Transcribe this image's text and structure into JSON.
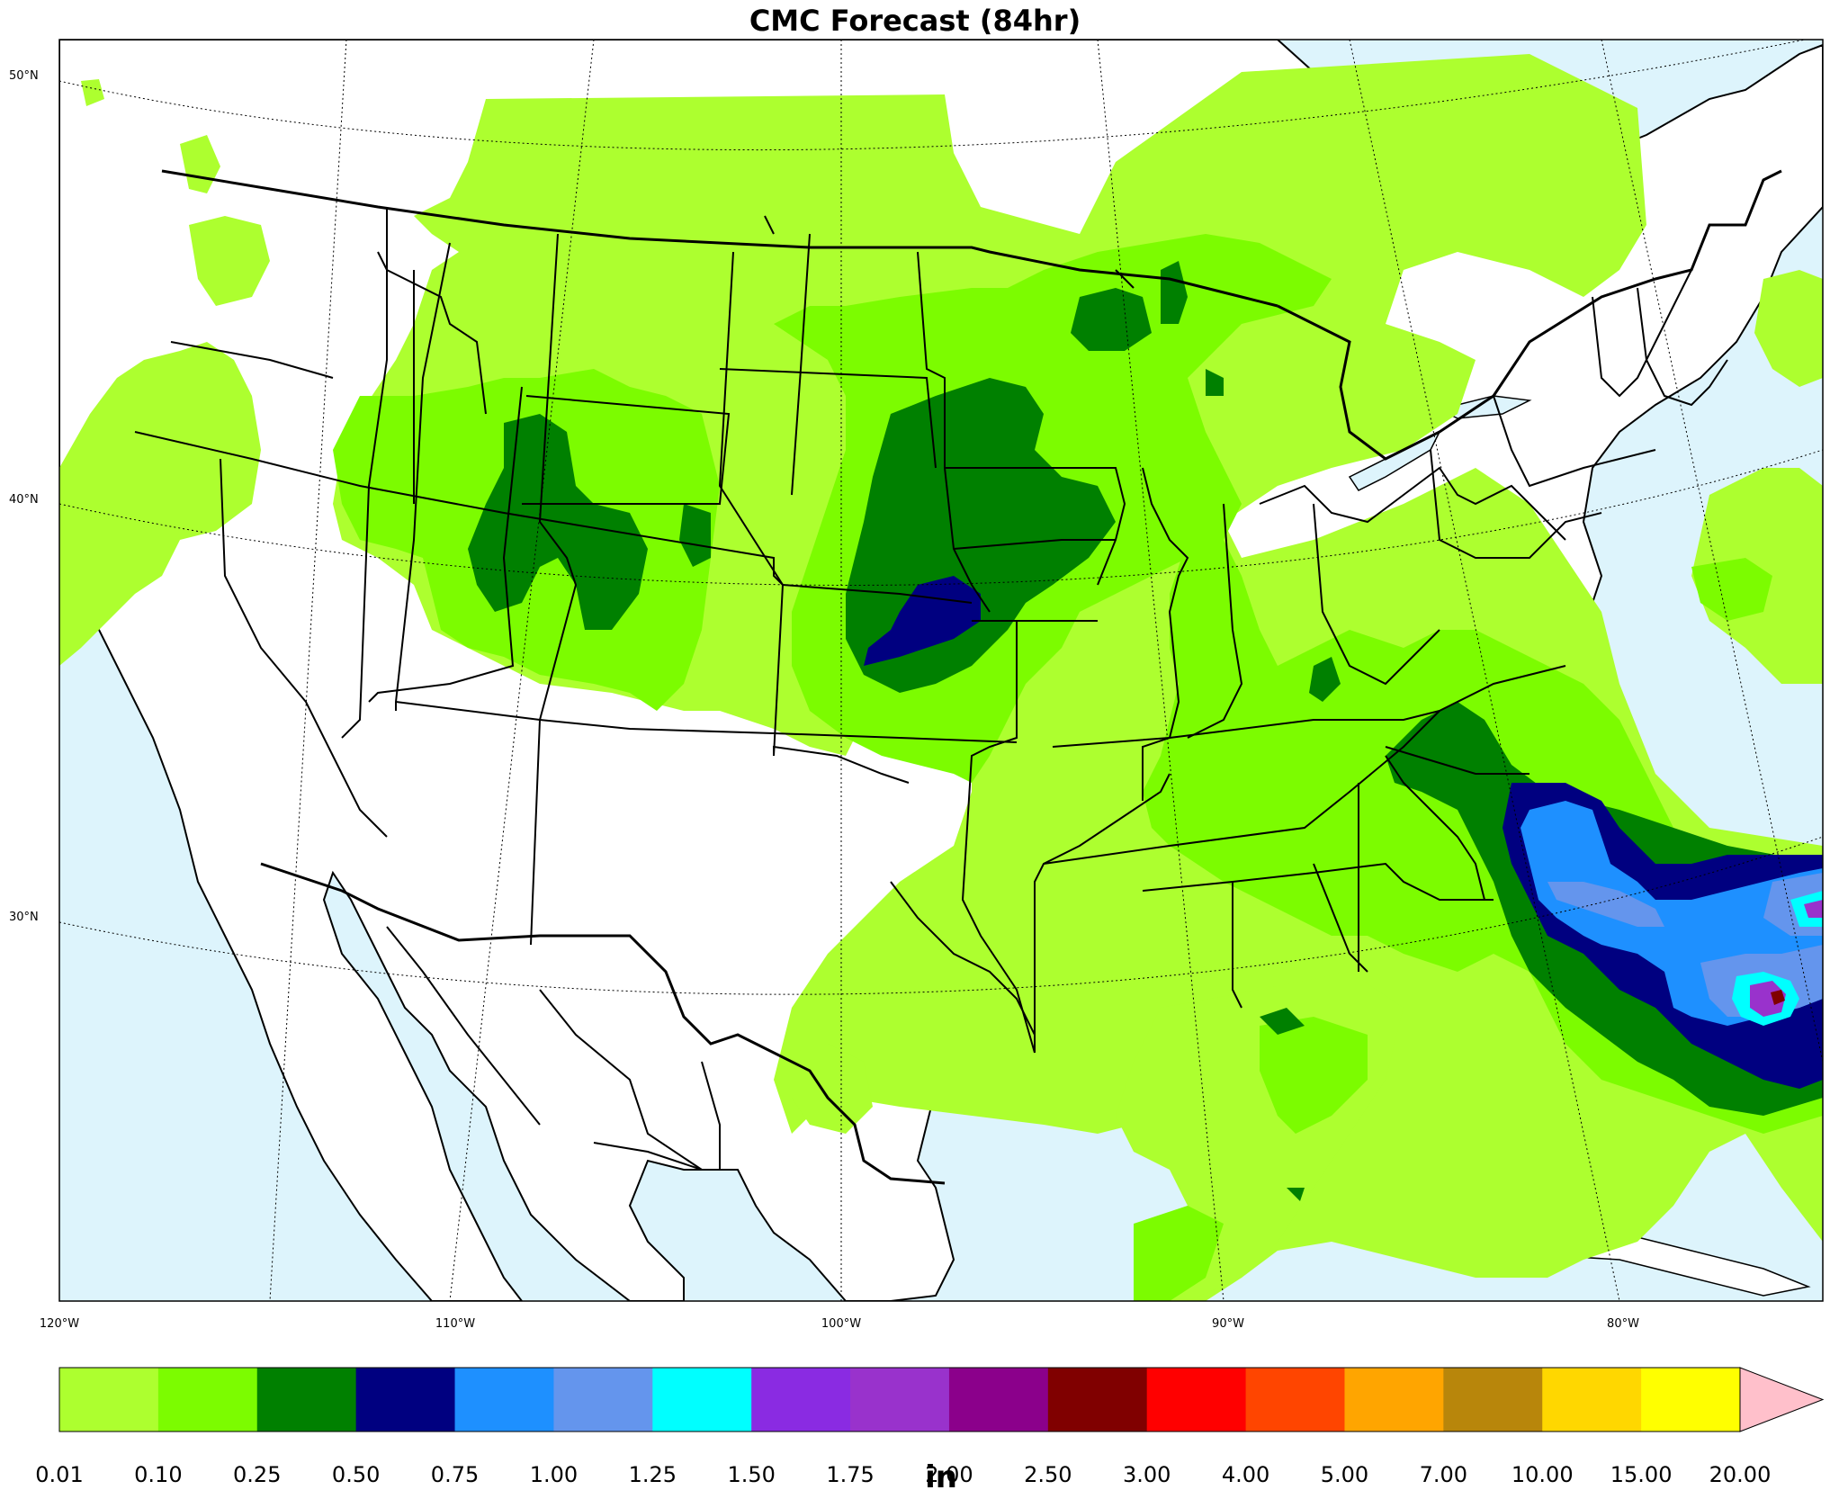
{
  "title": "CMC Forecast (84hr)",
  "lat_labels": [
    "50°N",
    "40°N",
    "30°N"
  ],
  "lon_labels": [
    "120°W",
    "110°W",
    "100°W",
    "90°W",
    "80°W"
  ],
  "colorbar": {
    "ticks": [
      "0.01",
      "0.10",
      "0.25",
      "0.50",
      "0.75",
      "1.00",
      "1.25",
      "1.50",
      "1.75",
      "2.00",
      "2.50",
      "3.00",
      "4.00",
      "5.00",
      "7.00",
      "10.00",
      "15.00",
      "20.00"
    ],
    "colors": [
      "#adff2f",
      "#7cfc00",
      "#008000",
      "#000080",
      "#1e90ff",
      "#6495ed",
      "#00ffff",
      "#8a2be2",
      "#9932cc",
      "#8b008b",
      "#800000",
      "#ff0000",
      "#ff4500",
      "#ffa500",
      "#b8860b",
      "#ffd700",
      "#ffff00"
    ],
    "extend_color": "#ffc0cb",
    "unit": "in"
  },
  "map_colors": {
    "ocean": "#ddf4fc",
    "land": "#ffffff",
    "borders": "#000000"
  }
}
